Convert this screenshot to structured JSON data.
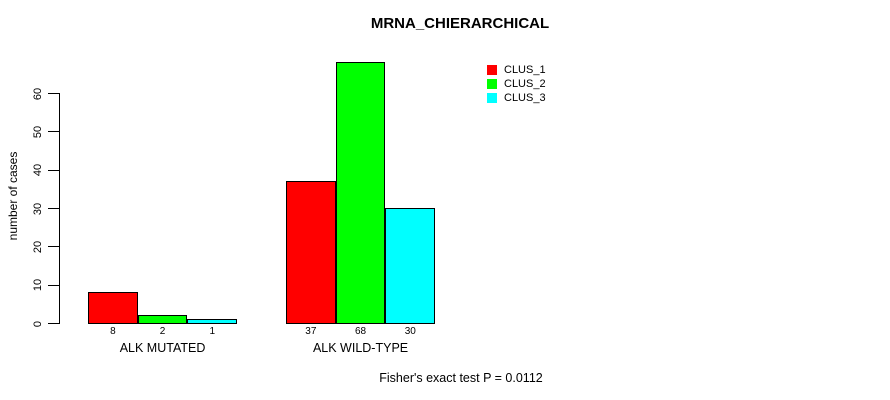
{
  "title": "MRNA_CHIERARCHICAL",
  "ylabel": "number of cases",
  "caption": "Fisher's exact test P = 0.0112",
  "chart_data": {
    "type": "bar",
    "title": "MRNA_CHIERARCHICAL",
    "ylabel": "number of cases",
    "xlabel": "",
    "categories": [
      "ALK MUTATED",
      "ALK WILD-TYPE"
    ],
    "series": [
      {
        "name": "CLUS_1",
        "color": "#ff0000",
        "values": [
          8,
          37
        ]
      },
      {
        "name": "CLUS_2",
        "color": "#00ff00",
        "values": [
          2,
          68
        ]
      },
      {
        "name": "CLUS_3",
        "color": "#00ffff",
        "values": [
          1,
          30
        ]
      }
    ],
    "bar_value_labels": [
      [
        "8",
        "2",
        "1"
      ],
      [
        "37",
        "68",
        "30"
      ]
    ],
    "yticks": [
      0,
      10,
      20,
      30,
      40,
      50,
      60
    ],
    "ylim": [
      0,
      68
    ],
    "grid": false,
    "legend_position": "top-right",
    "annotation": "Fisher's exact test P = 0.0112"
  }
}
